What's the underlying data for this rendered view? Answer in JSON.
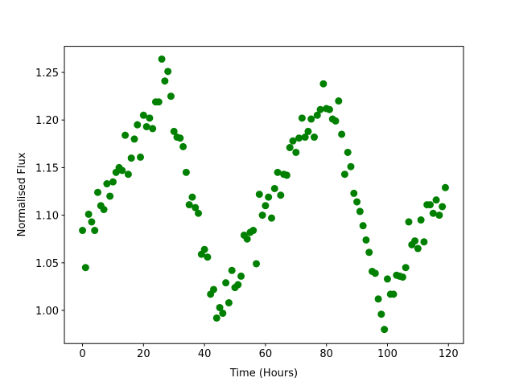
{
  "chart_data": {
    "type": "scatter",
    "x_label": "Time (Hours)",
    "y_label": "Normalised Flux",
    "color": "#008000",
    "x": [
      0,
      1,
      2,
      3,
      4,
      5,
      6,
      7,
      8,
      9,
      10,
      11,
      12,
      13,
      14,
      15,
      16,
      17,
      18,
      19,
      20,
      21,
      22,
      23,
      24,
      25,
      26,
      27,
      28,
      29,
      30,
      31,
      32,
      33,
      34,
      35,
      36,
      37,
      38,
      39,
      40,
      41,
      42,
      43,
      44,
      45,
      46,
      47,
      48,
      49,
      50,
      51,
      52,
      53,
      54,
      55,
      56,
      57,
      58,
      59,
      60,
      61,
      62,
      63,
      64,
      65,
      66,
      67,
      68,
      69,
      70,
      71,
      72,
      73,
      74,
      75,
      76,
      77,
      78,
      79,
      80,
      81,
      82,
      83,
      84,
      85,
      86,
      87,
      88,
      89,
      90,
      91,
      92,
      93,
      94,
      95,
      96,
      97,
      98,
      99,
      100,
      101,
      102,
      103,
      104,
      105,
      106,
      107,
      108,
      109,
      110,
      111,
      112,
      113,
      114,
      115,
      116,
      117,
      118,
      119
    ],
    "values": [
      1.084,
      1.045,
      1.101,
      1.093,
      1.084,
      1.124,
      1.11,
      1.106,
      1.133,
      1.12,
      1.135,
      1.145,
      1.15,
      1.147,
      1.184,
      1.143,
      1.16,
      1.18,
      1.195,
      1.161,
      1.205,
      1.193,
      1.202,
      1.191,
      1.219,
      1.219,
      1.264,
      1.241,
      1.251,
      1.225,
      1.188,
      1.182,
      1.181,
      1.172,
      1.145,
      1.111,
      1.119,
      1.108,
      1.102,
      1.059,
      1.064,
      1.056,
      1.017,
      1.022,
      0.992,
      1.003,
      0.997,
      1.029,
      1.008,
      1.042,
      1.024,
      1.027,
      1.036,
      1.079,
      1.075,
      1.082,
      1.084,
      1.049,
      1.122,
      1.1,
      1.11,
      1.119,
      1.097,
      1.128,
      1.145,
      1.121,
      1.143,
      1.142,
      1.171,
      1.178,
      1.166,
      1.181,
      1.202,
      1.182,
      1.188,
      1.201,
      1.182,
      1.205,
      1.211,
      1.238,
      1.212,
      1.211,
      1.201,
      1.199,
      1.22,
      1.185,
      1.143,
      1.166,
      1.151,
      1.123,
      1.114,
      1.104,
      1.089,
      1.074,
      1.061,
      1.041,
      1.039,
      1.012,
      0.996,
      0.98,
      1.033,
      1.017,
      1.017,
      1.037,
      1.036,
      1.035,
      1.045,
      1.093,
      1.069,
      1.073,
      1.065,
      1.095,
      1.072,
      1.111,
      1.111,
      1.102,
      1.116,
      1.1,
      1.109,
      1.129
    ],
    "xlim": [
      -5.95,
      124.95
    ],
    "ylim": [
      0.9652,
      1.2774
    ],
    "xticks": [
      0,
      20,
      40,
      60,
      80,
      100,
      120
    ],
    "yticks": [
      {
        "value": 1,
        "label": "1.00"
      },
      1.05,
      {
        "value": 1.1,
        "label": "1.10"
      },
      1.15,
      {
        "value": 1.2,
        "label": "1.20"
      },
      1.25
    ]
  }
}
